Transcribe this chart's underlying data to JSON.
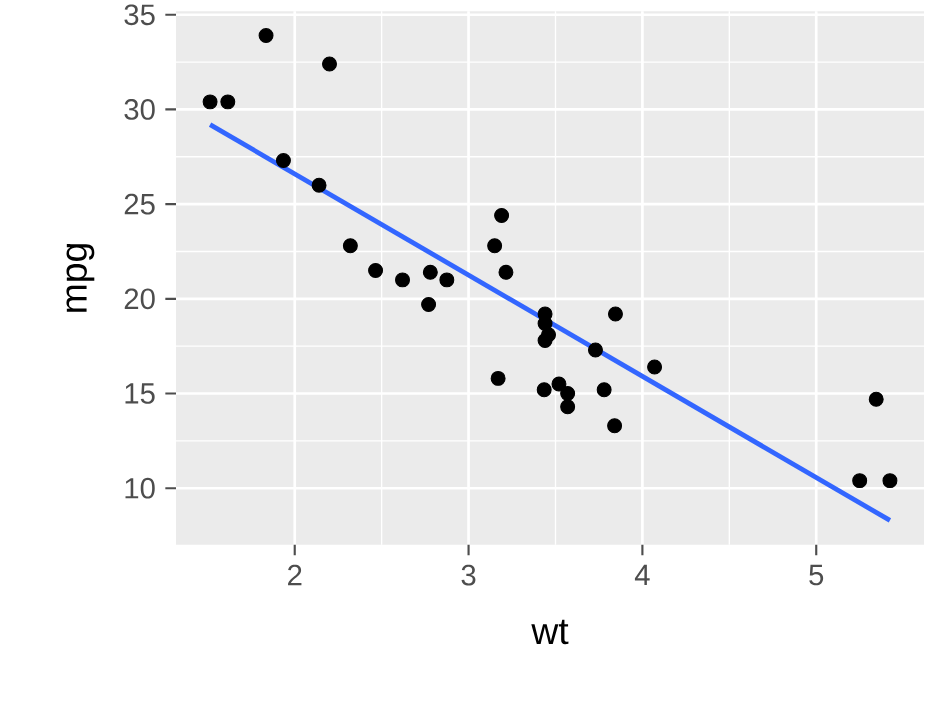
{
  "chart_data": {
    "type": "scatter",
    "xlabel": "wt",
    "ylabel": "mpg",
    "xlim": [
      1.317,
      5.62
    ],
    "ylim": [
      7.02,
      35.18
    ],
    "xticks": [
      2,
      3,
      4,
      5
    ],
    "yticks": [
      10,
      15,
      20,
      25,
      30,
      35
    ],
    "grid": true,
    "series": [
      {
        "marker": "circle",
        "color": "#000000",
        "x": [
          2.62,
          2.875,
          2.32,
          3.215,
          3.44,
          3.46,
          3.57,
          3.19,
          3.15,
          3.44,
          3.44,
          4.07,
          3.73,
          3.78,
          5.25,
          5.424,
          5.345,
          2.2,
          1.615,
          1.835,
          2.465,
          3.52,
          3.435,
          3.84,
          3.845,
          1.935,
          2.14,
          1.513,
          3.17,
          2.77,
          3.57,
          2.78
        ],
        "values": [
          21.0,
          21.0,
          22.8,
          21.4,
          18.7,
          18.1,
          14.3,
          24.4,
          22.8,
          19.2,
          17.8,
          16.4,
          17.3,
          15.2,
          10.4,
          10.4,
          14.7,
          32.4,
          30.4,
          33.9,
          21.5,
          15.5,
          15.2,
          13.3,
          19.2,
          27.3,
          26.0,
          30.4,
          15.8,
          19.7,
          15.0,
          21.4
        ]
      },
      {
        "type": "line",
        "color": "#3366ff",
        "x": [
          1.513,
          5.424
        ],
        "values": [
          29.2,
          8.3
        ]
      }
    ]
  }
}
